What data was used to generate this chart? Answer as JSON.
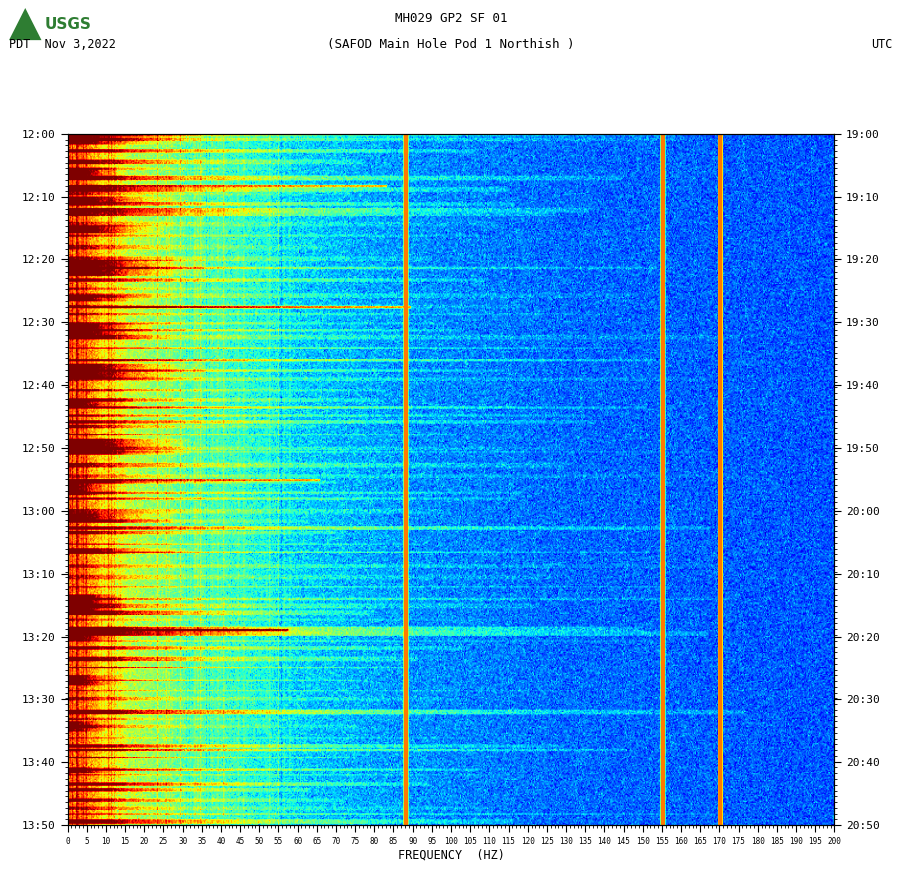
{
  "title_line1": "MH029 GP2 SF 01",
  "title_line2": "(SAFOD Main Hole Pod 1 Northish )",
  "left_label": "PDT  Nov 3,2022",
  "right_label": "UTC",
  "left_yticks": [
    "12:00",
    "12:10",
    "12:20",
    "12:30",
    "12:40",
    "12:50",
    "13:00",
    "13:10",
    "13:20",
    "13:30",
    "13:40",
    "13:50"
  ],
  "right_yticks": [
    "19:00",
    "19:10",
    "19:20",
    "19:30",
    "19:40",
    "19:50",
    "20:00",
    "20:10",
    "20:20",
    "20:30",
    "20:40",
    "20:50"
  ],
  "xtick_labels": [
    "0",
    "5",
    "10",
    "15",
    "20",
    "25",
    "30",
    "35",
    "40",
    "45",
    "50",
    "55",
    "60",
    "65",
    "70",
    "75",
    "80",
    "85",
    "90",
    "95",
    "100",
    "105",
    "110",
    "115",
    "120",
    "125",
    "130",
    "135",
    "140",
    "145",
    "150",
    "155",
    "160",
    "165",
    "170",
    "175",
    "180",
    "185",
    "190",
    "195",
    "200"
  ],
  "xlabel": "FREQUENCY  (HZ)",
  "freq_min": 0,
  "freq_max": 200,
  "time_rows": 600,
  "freq_cols": 800,
  "colormap": "jet",
  "background_color": "#ffffff",
  "orange_lines_freq": [
    88,
    155,
    170
  ],
  "seed": 42,
  "fig_width": 9.02,
  "fig_height": 8.92,
  "dpi": 100
}
